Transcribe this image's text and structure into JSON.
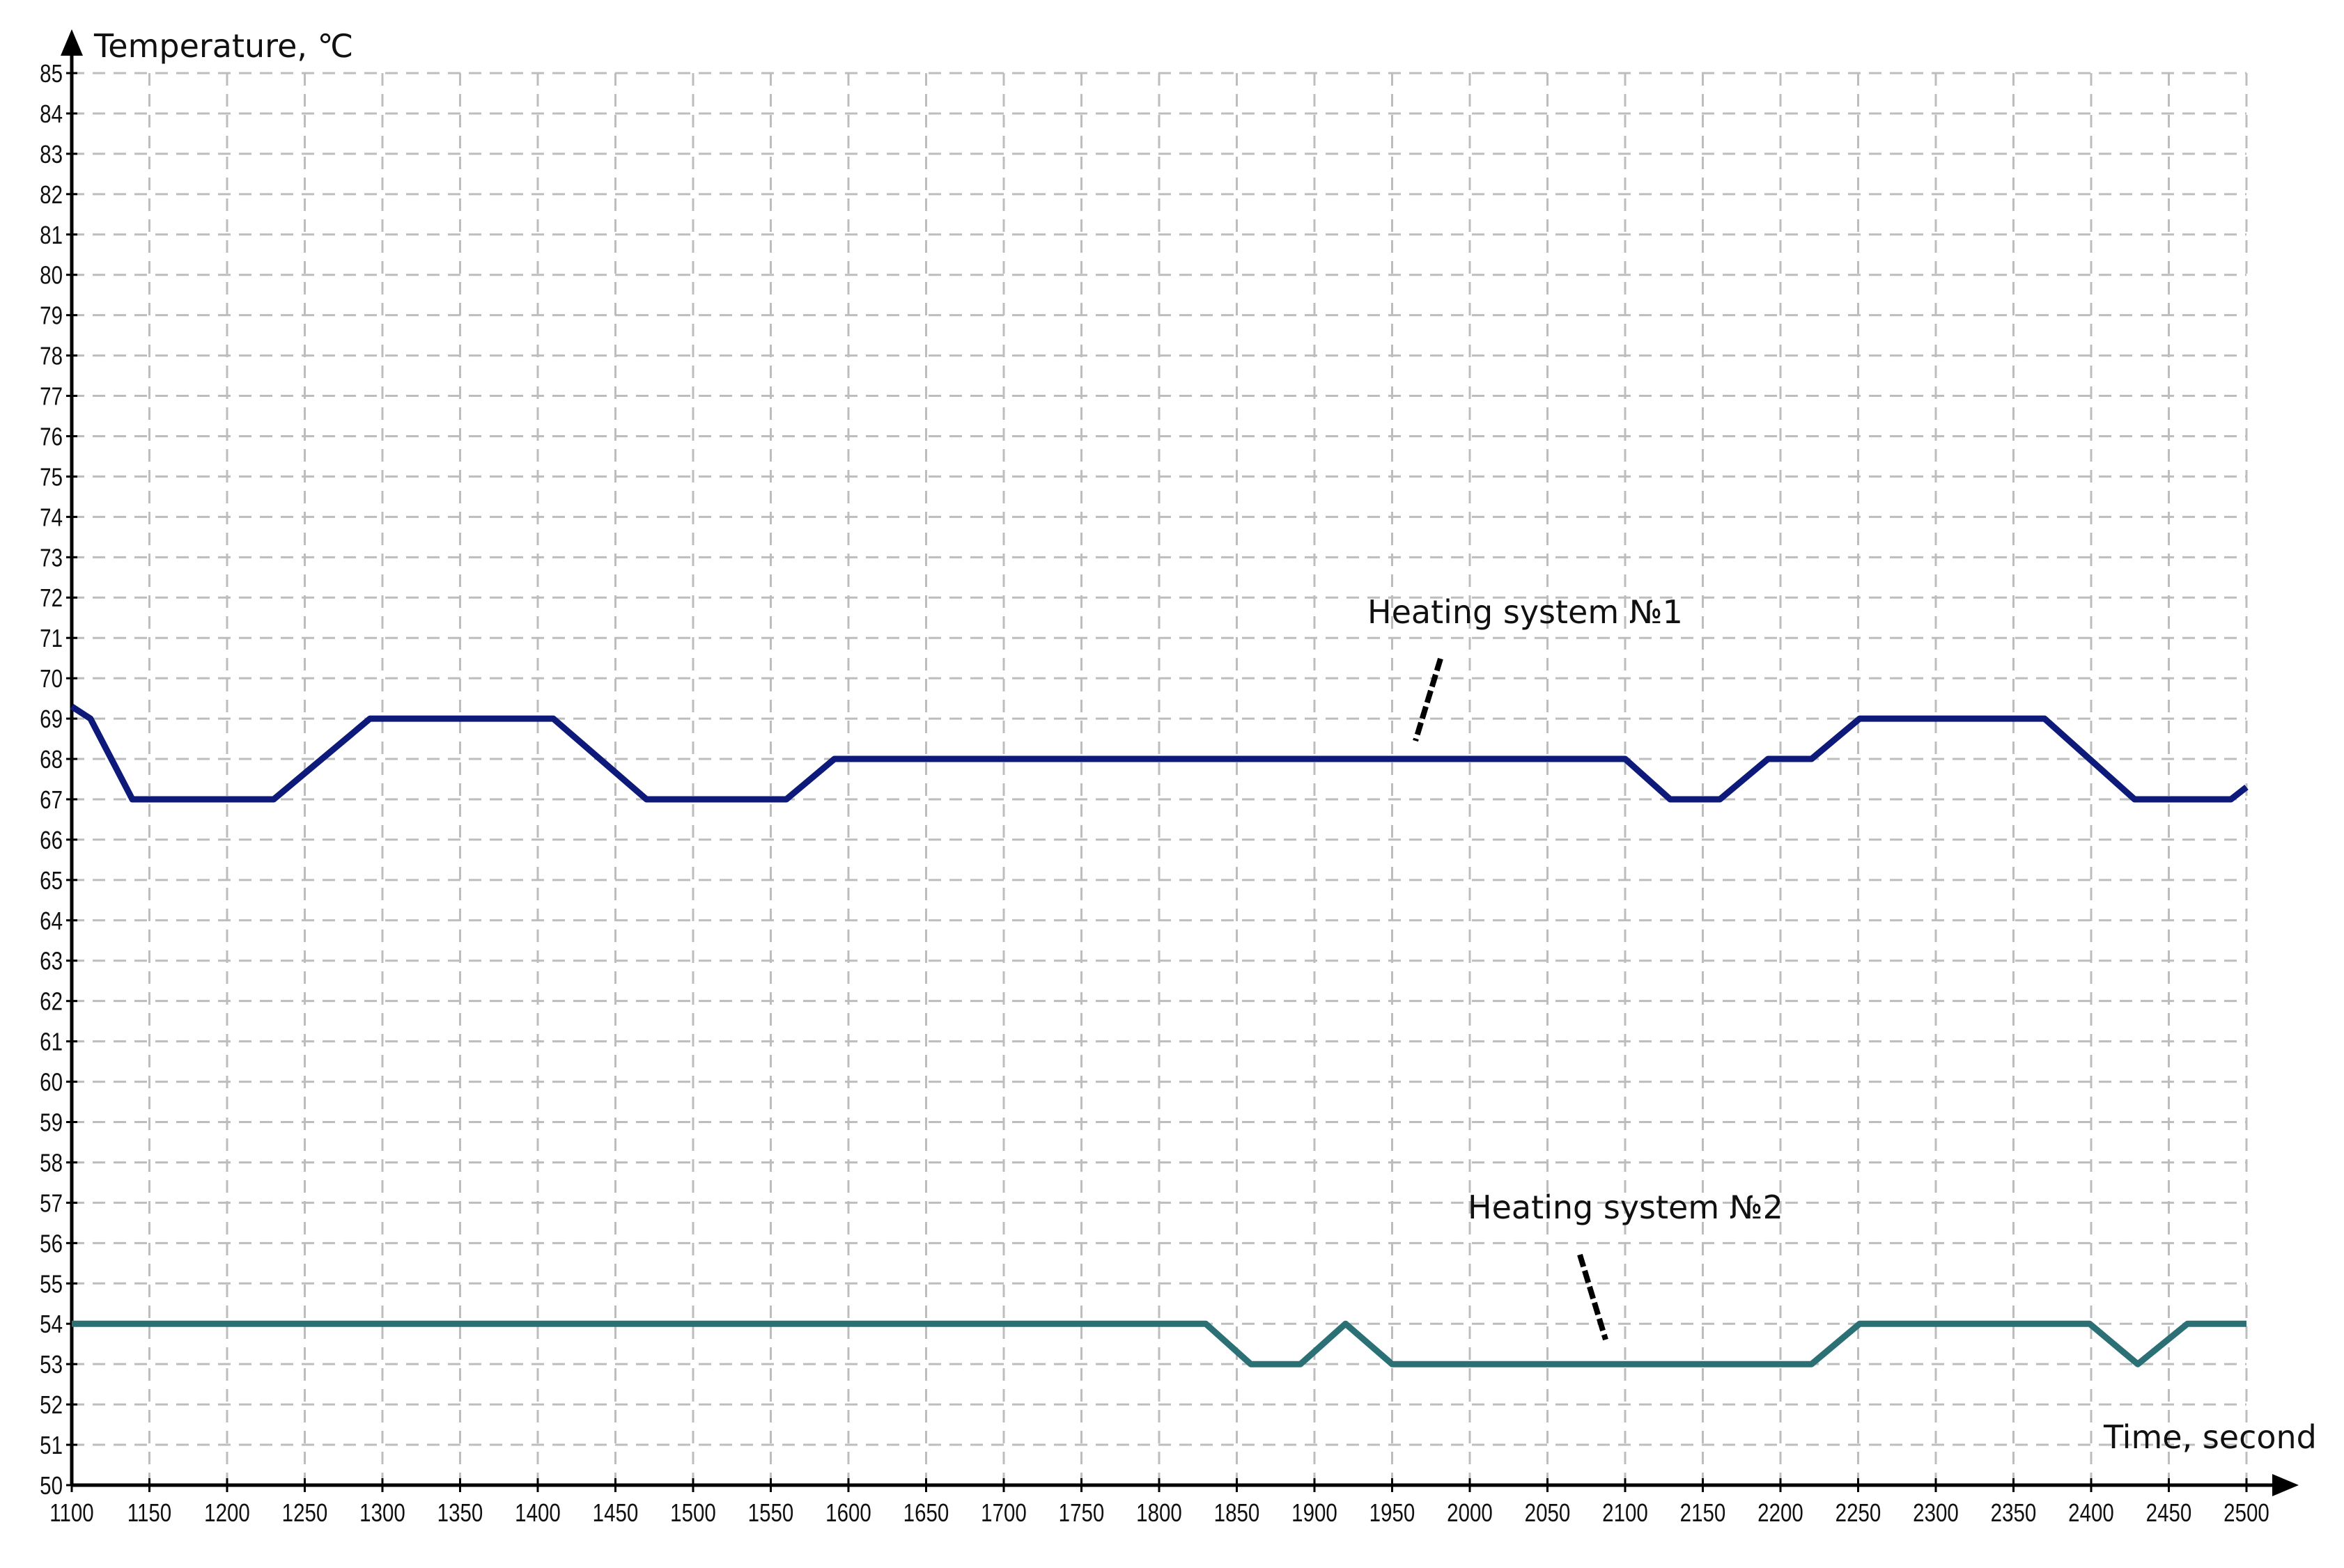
{
  "chart_data": {
    "type": "line",
    "title": "",
    "xlabel": "Time, second",
    "ylabel": "Temperature, ℃",
    "xlim": [
      1100,
      2500
    ],
    "ylim": [
      50,
      85
    ],
    "xticks_step": 50,
    "yticks_step": 1,
    "grid": true,
    "grid_style": "dashed",
    "series": [
      {
        "name": "Heating system №1",
        "color": "#0d1a7a",
        "x": [
          1100,
          1112,
          1139,
          1230,
          1292,
          1410,
          1470,
          1560,
          1591,
          2100,
          2129,
          2161,
          2192,
          2220,
          2251,
          2370,
          2428,
          2490,
          2500
        ],
        "y": [
          69.3,
          69,
          67,
          67,
          69,
          69,
          67,
          67,
          68,
          68,
          67,
          67,
          68,
          68,
          69,
          69,
          67,
          67,
          67.3
        ]
      },
      {
        "name": "Heating system №2",
        "color": "#2a7075",
        "x": [
          1100,
          1830,
          1859,
          1891,
          1920,
          1950,
          2220,
          2251,
          2399,
          2430,
          2462,
          2500
        ],
        "y": [
          54,
          54,
          53,
          53,
          54,
          53,
          53,
          54,
          54,
          53,
          54,
          54
        ]
      }
    ],
    "annotations": [
      {
        "text": "Heating system №1",
        "series": 0
      },
      {
        "text": "Heating system №2",
        "series": 1
      }
    ]
  }
}
